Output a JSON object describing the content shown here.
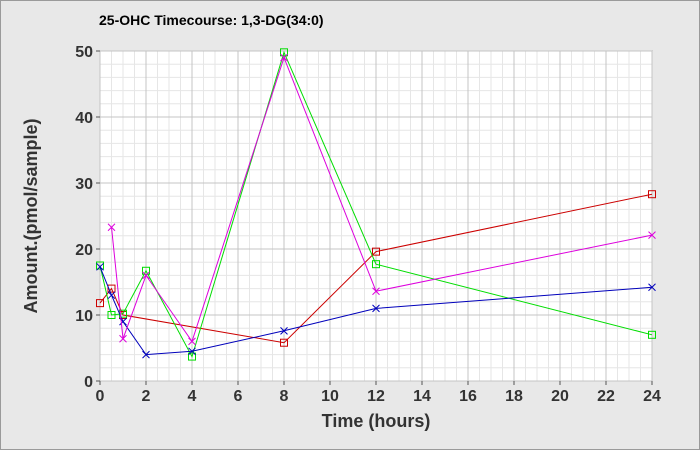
{
  "chart_data": {
    "type": "line",
    "title": "25-OHC Timecourse: 1,3-DG(34:0)",
    "xlabel": "Time (hours)",
    "ylabel": "Amount.(pmol/sample)",
    "xlim": [
      0,
      24
    ],
    "ylim": [
      0,
      50
    ],
    "xticks": [
      0,
      2,
      4,
      6,
      8,
      10,
      12,
      14,
      16,
      18,
      20,
      22,
      24
    ],
    "yticks": [
      0,
      10,
      20,
      30,
      40,
      50
    ],
    "grid": true,
    "legend": "none",
    "series": [
      {
        "color": "#cc0000",
        "marker": "square",
        "x": [
          0,
          0.5,
          1,
          8,
          12,
          24
        ],
        "y": [
          11.8,
          14.0,
          10.0,
          5.8,
          19.6,
          28.3
        ]
      },
      {
        "color": "#00dd00",
        "marker": "square",
        "x": [
          0,
          0.5,
          1,
          2,
          4,
          8,
          12,
          24
        ],
        "y": [
          17.5,
          10.0,
          10.2,
          16.7,
          3.7,
          49.8,
          17.7,
          7.0
        ]
      },
      {
        "color": "#0000bb",
        "marker": "x",
        "x": [
          0,
          0.5,
          1,
          2,
          4,
          8,
          12,
          24
        ],
        "y": [
          17.3,
          13.0,
          9.0,
          4.0,
          4.5,
          7.6,
          11.0,
          14.2
        ]
      },
      {
        "color": "#dd00dd",
        "marker": "x",
        "x": [
          0.5,
          1,
          2,
          4,
          8,
          12,
          24
        ],
        "y": [
          23.3,
          6.4,
          16.0,
          6.0,
          49.0,
          13.6,
          22.1
        ]
      }
    ]
  }
}
